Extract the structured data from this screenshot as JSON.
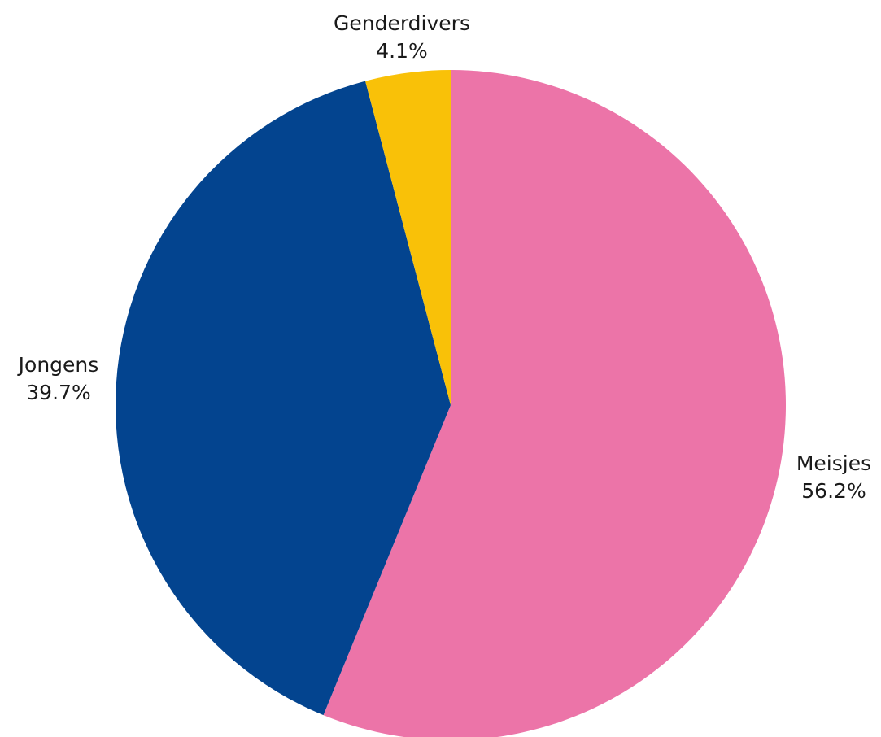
{
  "chart_data": {
    "type": "pie",
    "slices": [
      {
        "label": "Meisjes",
        "value": 56.2,
        "value_label": "56.2%",
        "color": "#EC74A8"
      },
      {
        "label": "Jongens",
        "value": 39.7,
        "value_label": "39.7%",
        "color": "#03448F"
      },
      {
        "label": "Genderdivers",
        "value": 4.1,
        "value_label": "4.1%",
        "color": "#F9C108"
      }
    ],
    "start": "top",
    "direction": "clockwise",
    "legend": "none"
  }
}
